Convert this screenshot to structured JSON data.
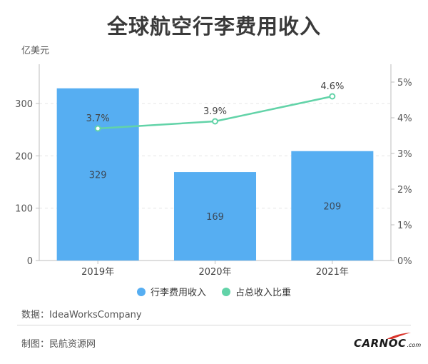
{
  "title": "全球航空行李费用收入",
  "y_unit": "亿美元",
  "legend": [
    {
      "label": "行李费用收入",
      "color": "#56aef2"
    },
    {
      "label": "占总收入比重",
      "color": "#62d3a8"
    }
  ],
  "source": "数据：IdeaWorksCompany",
  "credit": "制图：民航资源网",
  "logo": {
    "main": "CARNOC",
    "sub": ".com"
  },
  "colors": {
    "bar": "#56aef2",
    "line": "#62d3a8",
    "accent": "#d9342b"
  },
  "chart_data": {
    "type": "bar",
    "categories": [
      "2019年",
      "2020年",
      "2021年"
    ],
    "series": [
      {
        "name": "行李费用收入",
        "type": "bar",
        "axis": "left",
        "values": [
          329,
          169,
          209
        ],
        "labels": [
          "329",
          "169",
          "209"
        ]
      },
      {
        "name": "占总收入比重",
        "type": "line",
        "axis": "right",
        "values": [
          3.7,
          3.9,
          4.6
        ],
        "labels": [
          "3.7%",
          "3.9%",
          "4.6%"
        ]
      }
    ],
    "ylabel": "亿美元",
    "ylim": [
      0,
      375
    ],
    "yticks": [
      0,
      100,
      200,
      300
    ],
    "y2lim": [
      0,
      5.5
    ],
    "y2ticks": [
      "0%",
      "1%",
      "2%",
      "3%",
      "4%",
      "5%"
    ],
    "y2tick_values": [
      0,
      1,
      2,
      3,
      4,
      5
    ]
  }
}
